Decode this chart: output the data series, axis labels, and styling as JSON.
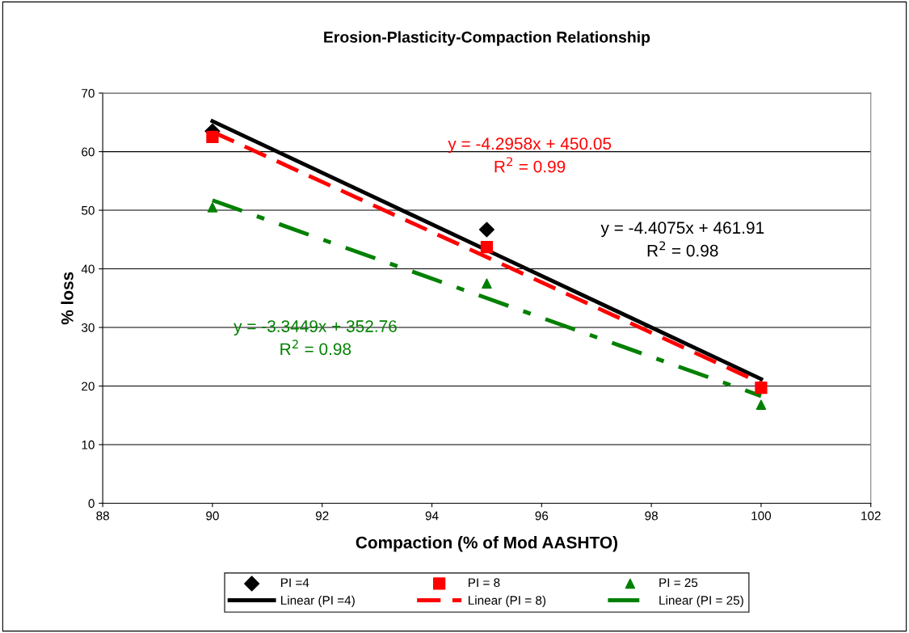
{
  "chart_data": {
    "type": "scatter",
    "title": "Erosion-Plasticity-Compaction Relationship",
    "xlabel": "Compaction (% of Mod AASHTO)",
    "ylabel": "% loss",
    "x": [
      90,
      95,
      100
    ],
    "series": [
      {
        "name": "PI =4",
        "color": "#000000",
        "marker": "diamond",
        "values": [
          63.5,
          46.7,
          null
        ]
      },
      {
        "name": "PI = 8",
        "color": "#ff0000",
        "marker": "square",
        "values": [
          62.5,
          43.7,
          19.7
        ]
      },
      {
        "name": "PI = 25",
        "color": "#008000",
        "marker": "triangle",
        "values": [
          50.5,
          37.5,
          16.8
        ]
      },
      {
        "name": "Linear (PI =4)",
        "type": "line",
        "color": "#000000",
        "line_style": "solid",
        "values": [
          65.2,
          43.2,
          21.2
        ]
      },
      {
        "name": "Linear (PI = 8)",
        "type": "line",
        "color": "#ff0000",
        "line_style": "dashed",
        "values": [
          63.4,
          42.0,
          20.5
        ]
      },
      {
        "name": "Linear (PI = 25)",
        "type": "line",
        "color": "#008000",
        "line_style": "dashdot",
        "values": [
          51.7,
          35.0,
          18.3
        ]
      }
    ],
    "annotations": [
      "y = -4.4075x + 461.91\nR$^{2}$ = 0.98",
      "y = -4.2958x + 450.05\nR$^{2}$ = 0.99",
      "y = -3.3449x + 352.76\nR$^{2}$ = 0.98"
    ],
    "xlim": [
      88,
      102
    ],
    "xticks": [
      88,
      90,
      92,
      94,
      96,
      98,
      100,
      102
    ],
    "ylim": [
      0,
      70
    ],
    "yticks": [
      0,
      10,
      20,
      30,
      40,
      50,
      60,
      70
    ],
    "grid": "y",
    "legend": "bottom"
  }
}
